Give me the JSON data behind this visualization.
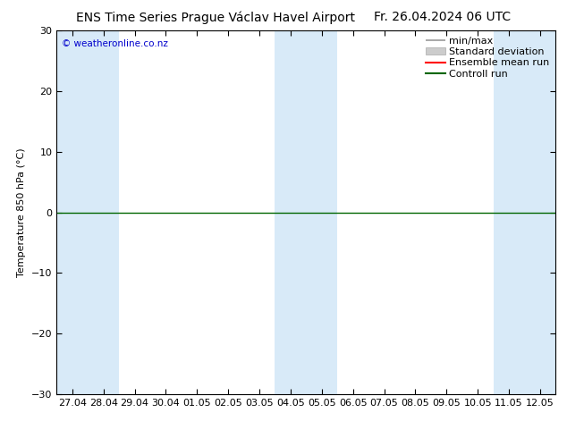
{
  "title_left": "ENS Time Series Prague Václav Havel Airport",
  "title_right": "Fr. 26.04.2024 06 UTC",
  "ylabel": "Temperature 850 hPa (°C)",
  "watermark": "© weatheronline.co.nz",
  "ylim": [
    -30,
    30
  ],
  "yticks": [
    -30,
    -20,
    -10,
    0,
    10,
    20,
    30
  ],
  "x_labels": [
    "27.04",
    "28.04",
    "29.04",
    "30.04",
    "01.05",
    "02.05",
    "03.05",
    "04.05",
    "05.05",
    "06.05",
    "07.05",
    "08.05",
    "09.05",
    "10.05",
    "11.05",
    "12.05"
  ],
  "shaded_bands": [
    0,
    1,
    7,
    8,
    14,
    15
  ],
  "background_color": "#ffffff",
  "band_color": "#d8eaf8",
  "zero_line_color": "#006600",
  "zero_line_y": 0,
  "title_fontsize": 10,
  "axis_fontsize": 8,
  "tick_fontsize": 8,
  "watermark_color": "#0000cc",
  "legend_fontsize": 8
}
